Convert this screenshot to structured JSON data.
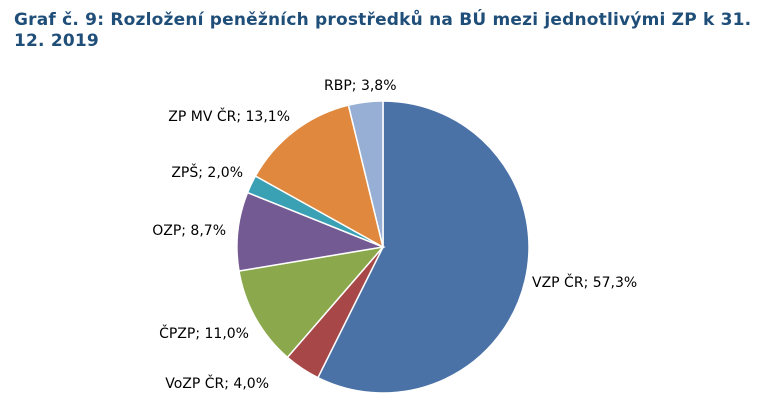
{
  "chart_data": {
    "type": "pie",
    "title": "Graf č. 9: Rozložení peněžních prostředků na BÚ mezi jednotlivými ZP k 31. 12. 2019",
    "slices": [
      {
        "name": "VZP ČR",
        "value": 57.3,
        "label": "VZP ČR; 57,3%",
        "color": "#4a72a7"
      },
      {
        "name": "VoZP ČR",
        "value": 4.0,
        "label": "VoZP ČR; 4,0%",
        "color": "#a84747"
      },
      {
        "name": "ČPZP",
        "value": 11.0,
        "label": "ČPZP; 11,0%",
        "color": "#8ba94c"
      },
      {
        "name": "OZP",
        "value": 8.7,
        "label": "OZP; 8,7%",
        "color": "#735a92"
      },
      {
        "name": "ZPŠ",
        "value": 2.0,
        "label": "ZPŠ; 2,0%",
        "color": "#3aa0b3"
      },
      {
        "name": "ZP MV ČR",
        "value": 13.1,
        "label": "ZP MV ČR; 13,1%",
        "color": "#e0883d"
      },
      {
        "name": "RBP",
        "value": 3.8,
        "label": "RBP; 3,8%",
        "color": "#97afd4"
      }
    ]
  }
}
